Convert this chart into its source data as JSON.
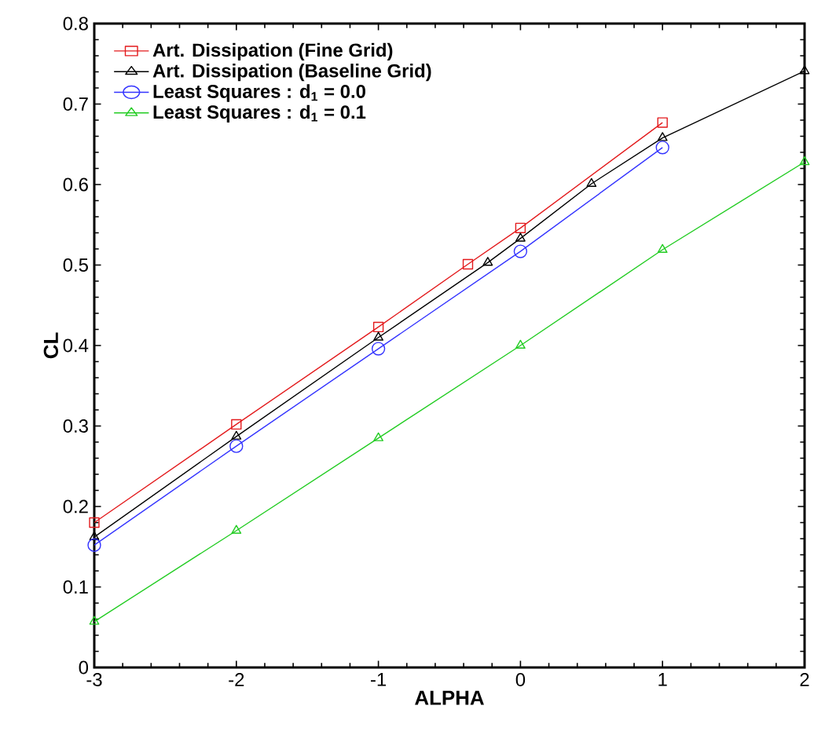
{
  "chart_data": {
    "type": "line",
    "xlabel": "ALPHA",
    "ylabel": "CL",
    "xlim": [
      -3,
      2
    ],
    "ylim": [
      0,
      0.8
    ],
    "xticks": [
      -3,
      -2,
      -1,
      0,
      1,
      2
    ],
    "yticks": [
      0,
      0.1,
      0.2,
      0.3,
      0.4,
      0.5,
      0.6,
      0.7,
      0.8
    ],
    "grid": false,
    "legend": "top left",
    "series": [
      {
        "name": "Art. Dissipation (Fine Grid)",
        "color": "#e31a1c",
        "marker": "square",
        "x": [
          -3,
          -2,
          -1,
          -0.37,
          0,
          1
        ],
        "values": [
          0.18,
          0.302,
          0.423,
          0.501,
          0.546,
          0.677
        ]
      },
      {
        "name": "Art. Dissipation (Baseline Grid)",
        "color": "#000000",
        "marker": "triangle",
        "x": [
          -3,
          -2,
          -1,
          -0.23,
          0,
          0.5,
          1,
          2
        ],
        "values": [
          0.162,
          0.287,
          0.41,
          0.503,
          0.533,
          0.601,
          0.658,
          0.741
        ]
      },
      {
        "name": "Least Squares : d$_{1}$ = 0.0",
        "color": "#3333ff",
        "marker": "circle",
        "x": [
          -3,
          -2,
          -1,
          0,
          1
        ],
        "values": [
          0.152,
          0.275,
          0.396,
          0.517,
          0.646
        ]
      },
      {
        "name": "Least Squares : d$_{1}$ = 0.1",
        "color": "#22cc22",
        "marker": "triangle",
        "x": [
          -3,
          -2,
          -1,
          0,
          1,
          2
        ],
        "values": [
          0.057,
          0.17,
          0.285,
          0.4,
          0.519,
          0.628
        ]
      }
    ]
  }
}
